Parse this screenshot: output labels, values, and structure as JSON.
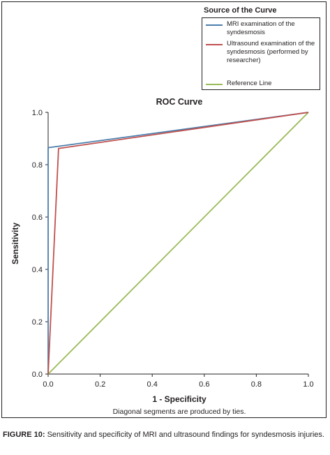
{
  "chart_data": {
    "type": "line",
    "title": "ROC Curve",
    "xlabel": "1 - Specificity",
    "ylabel": "Sensitivity",
    "xlim": [
      0.0,
      1.0
    ],
    "ylim": [
      0.0,
      1.0
    ],
    "x_ticks": [
      "0.0",
      "0.2",
      "0.4",
      "0.6",
      "0.8",
      "1.0"
    ],
    "y_ticks": [
      "0.0",
      "0.2",
      "0.4",
      "0.6",
      "0.8",
      "1.0"
    ],
    "grid": false,
    "legend_title": "Source of the Curve",
    "legend_position": "top-right",
    "series": [
      {
        "name": "MRI examination of the syndesmosis",
        "color": "#4a7eab",
        "points": [
          [
            0.0,
            0.0
          ],
          [
            0.0,
            0.865
          ],
          [
            1.0,
            1.0
          ]
        ]
      },
      {
        "name": "Ultrasound examination of the syndesmosis (performed by researcher)",
        "color": "#c0504d",
        "points": [
          [
            0.0,
            0.0
          ],
          [
            0.04,
            0.862
          ],
          [
            1.0,
            1.0
          ]
        ]
      },
      {
        "name": "Reference Line",
        "color": "#9bbb59",
        "points": [
          [
            0.0,
            0.0
          ],
          [
            1.0,
            1.0
          ]
        ]
      }
    ],
    "note": "Diagonal segments are produced by ties."
  },
  "caption": {
    "label": "FIGURE 10:",
    "text": " Sensitivity and specificity of MRI and ultrasound findings for syndesmosis injuries."
  }
}
